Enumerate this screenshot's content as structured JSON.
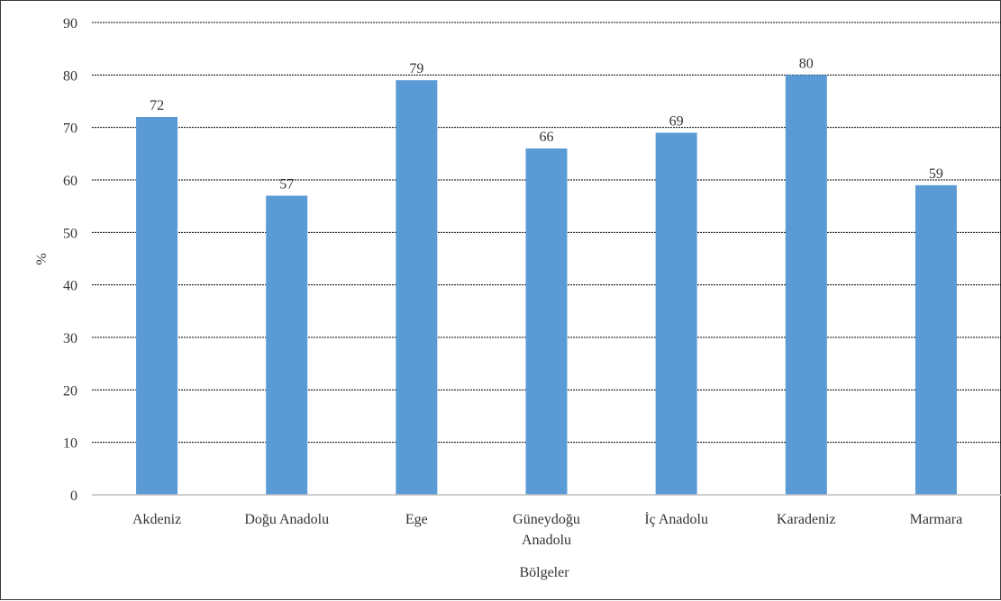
{
  "chart_data": {
    "type": "bar",
    "categories": [
      [
        "Akdeniz"
      ],
      [
        "Doğu Anadolu"
      ],
      [
        "Ege"
      ],
      [
        "Güneydoğu",
        "Anadolu"
      ],
      [
        "İç Anadolu"
      ],
      [
        "Karadeniz"
      ],
      [
        "Marmara"
      ]
    ],
    "values": [
      72,
      57,
      79,
      66,
      69,
      80,
      59
    ],
    "data_labels": [
      "72",
      "57",
      "79",
      "66",
      "69",
      "80",
      "59"
    ],
    "xlabel": "Bölgeler",
    "ylabel": "%",
    "ylim": [
      0,
      90
    ],
    "yticks": [
      "0",
      "10",
      "20",
      "30",
      "40",
      "50",
      "60",
      "70",
      "80",
      "90"
    ],
    "grid": true,
    "colors": {
      "bar": "#5b9bd5",
      "grid": "#000000",
      "axis": "#bfbfbf",
      "text": "#333333"
    }
  }
}
